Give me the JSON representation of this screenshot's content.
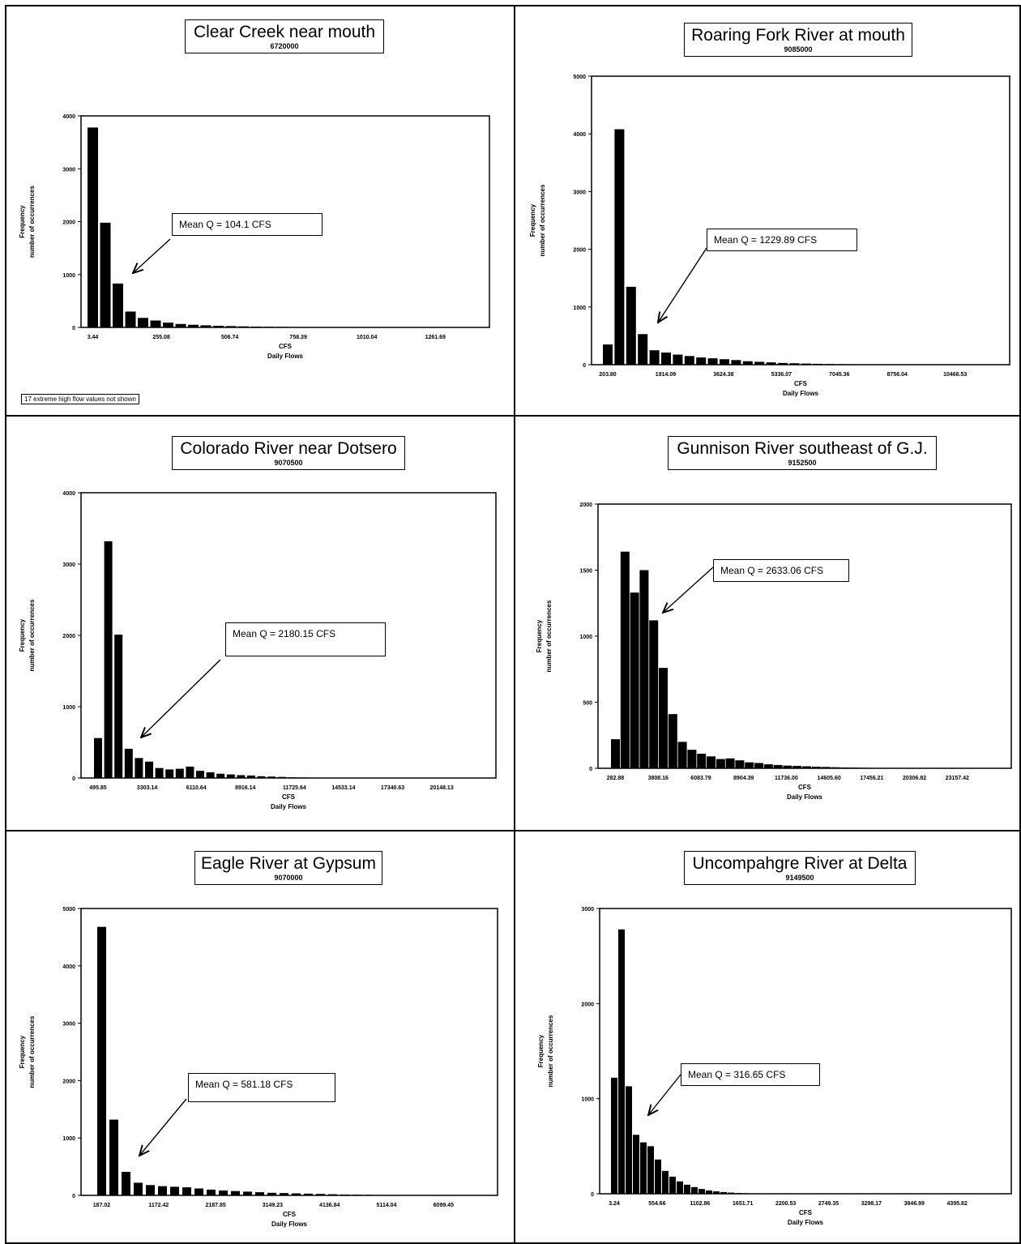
{
  "chart_data": [
    {
      "type": "bar",
      "title": "Clear Creek near mouth",
      "subtitle": "6720000",
      "xlabel": "CFS",
      "xlabel2": "Daily Flows",
      "ylabel": "Frequency",
      "ylabel2": "number of occurrences",
      "ylim": [
        0,
        4000
      ],
      "yticks": [
        0,
        1000,
        2000,
        3000,
        4000
      ],
      "xticks": [
        "3.44",
        "255.08",
        "506.74",
        "758.39",
        "1010.04",
        "1261.69"
      ],
      "values": [
        3780,
        1980,
        830,
        300,
        180,
        130,
        90,
        65,
        50,
        40,
        30,
        25,
        20,
        15,
        12,
        10,
        8,
        6,
        5,
        4,
        3,
        3,
        2,
        2,
        1,
        1
      ],
      "annotation": "Mean Q = 104.1 CFS",
      "note": "17 extreme high flow values not shown"
    },
    {
      "type": "bar",
      "title": "Roaring Fork River at mouth",
      "subtitle": "9085000",
      "xlabel": "CFS",
      "xlabel2": "Daily Flows",
      "ylabel": "Frequency",
      "ylabel2": "number of occurrences",
      "ylim": [
        0,
        5000
      ],
      "yticks": [
        0,
        1000,
        2000,
        3000,
        4000,
        5000
      ],
      "ytick_labels": [
        "0",
        "1000",
        "2000",
        "3000",
        "4000",
        "5000"
      ],
      "xticks": [
        "203.80",
        "1914.09",
        "3624.38",
        "5336.07",
        "7045.36",
        "8756.04",
        "10466.53"
      ],
      "values": [
        350,
        4080,
        1350,
        530,
        250,
        210,
        175,
        150,
        125,
        110,
        95,
        80,
        60,
        50,
        40,
        30,
        25,
        20,
        15,
        12,
        10,
        8,
        5,
        4,
        3,
        2,
        2,
        1,
        1,
        1
      ],
      "annotation": "Mean Q = 1229.89 CFS"
    },
    {
      "type": "bar",
      "title": "Colorado River near Dotsero",
      "subtitle": "9070500",
      "xlabel": "CFS",
      "xlabel2": "Daily Flows",
      "ylabel": "Frequency",
      "ylabel2": "number of occurrences",
      "ylim": [
        0,
        4000
      ],
      "yticks": [
        0,
        1000,
        2000,
        3000,
        4000
      ],
      "xticks": [
        "495.85",
        "3303.14",
        "6110.64",
        "8916.14",
        "11725.64",
        "14533.14",
        "17340.63",
        "20148.13"
      ],
      "values": [
        560,
        3320,
        2010,
        410,
        280,
        230,
        140,
        120,
        130,
        160,
        100,
        80,
        60,
        50,
        40,
        35,
        25,
        20,
        15,
        10,
        8,
        6,
        5,
        4,
        3,
        2,
        2,
        1,
        1,
        1
      ],
      "annotation": "Mean Q = 2180.15 CFS"
    },
    {
      "type": "bar",
      "title": "Gunnison River southeast of G.J.",
      "subtitle": "9152500",
      "xlabel": "CFS",
      "xlabel2": "Daily Flows",
      "ylabel": "Frequency",
      "ylabel2": "number of occurrences",
      "ylim": [
        0,
        2000
      ],
      "yticks": [
        0,
        500,
        1000,
        1500,
        2000
      ],
      "ytick_labels": [
        "0",
        "500",
        "1000",
        "1500",
        "2000"
      ],
      "xticks": [
        "282.88",
        "3808.16",
        "6083.79",
        "8904.39",
        "11736.00",
        "14605.60",
        "17456.21",
        "20306.82",
        "23157.42"
      ],
      "values": [
        220,
        1640,
        1330,
        1500,
        1120,
        760,
        410,
        200,
        140,
        110,
        90,
        70,
        75,
        60,
        45,
        40,
        30,
        25,
        20,
        18,
        15,
        12,
        10,
        8,
        6,
        5,
        4,
        3,
        2,
        2,
        1,
        1,
        1,
        1
      ],
      "annotation": "Mean Q = 2633.06 CFS"
    },
    {
      "type": "bar",
      "title": "Eagle River at Gypsum",
      "subtitle": "9070000",
      "xlabel": "CFS",
      "xlabel2": "Daily Flows",
      "ylabel": "Frequency",
      "ylabel2": "number of occurrences",
      "ylim": [
        0,
        5000
      ],
      "yticks": [
        0,
        1000,
        2000,
        3000,
        4000,
        5000
      ],
      "xticks": [
        "187.02",
        "1172.42",
        "2187.85",
        "3149.23",
        "4136.84",
        "5114.04",
        "6099.45"
      ],
      "values": [
        4680,
        1320,
        410,
        220,
        180,
        160,
        150,
        140,
        120,
        100,
        85,
        75,
        65,
        55,
        45,
        40,
        35,
        30,
        25,
        20,
        15,
        12,
        10,
        8,
        6,
        5,
        4,
        3,
        2,
        1
      ],
      "annotation": "Mean Q = 581.18 CFS"
    },
    {
      "type": "bar",
      "title": "Uncompahgre River at Delta",
      "subtitle": "9149500",
      "xlabel": "CFS",
      "xlabel2": "Daily Flows",
      "ylabel": "Frequency",
      "ylabel2": "number of occurrences",
      "ylim": [
        0,
        3000
      ],
      "yticks": [
        0,
        1000,
        2000,
        3000
      ],
      "xticks": [
        "3.24",
        "554.66",
        "1102.86",
        "1651.71",
        "2200.53",
        "2749.35",
        "3298.17",
        "3846.99",
        "4395.82"
      ],
      "values": [
        1220,
        2780,
        1130,
        620,
        540,
        500,
        360,
        240,
        180,
        130,
        95,
        70,
        50,
        35,
        25,
        18,
        12,
        8,
        6,
        4,
        3,
        2,
        2,
        1,
        1,
        1,
        1,
        1,
        1,
        1,
        1,
        1,
        1,
        1,
        1,
        1,
        1,
        1,
        1,
        1
      ],
      "annotation": "Mean Q = 316.65 CFS"
    }
  ]
}
